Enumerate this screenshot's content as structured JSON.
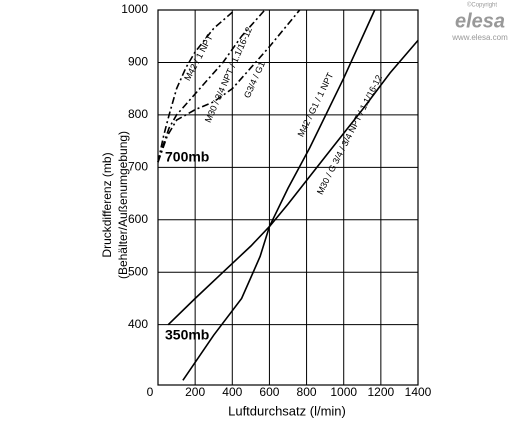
{
  "chart_data": {
    "type": "line",
    "y_label_lines": [
      "Druckdifferenz (mb)",
      "(Behälter/Außenumgebung)"
    ],
    "x_label": "Luftdurchsatz (l/min)",
    "annotations": [
      "700mb",
      "350mb"
    ],
    "logo": {
      "copyright": "©Copyright",
      "brand": "elesa",
      "url": "www.elesa.com"
    },
    "xlim": [
      0,
      1400
    ],
    "xticks": [
      0,
      200,
      400,
      600,
      800,
      1000,
      1200,
      1400
    ],
    "ylim": [
      285,
      1000
    ],
    "yticks": [
      400,
      500,
      600,
      700,
      800,
      900,
      1000
    ],
    "grid": true,
    "series": [
      {
        "name": "M42 / 1 NPT",
        "color": "#000000",
        "style": "dashdot",
        "x": [
          0,
          30,
          60,
          100,
          150,
          200,
          300,
          414
        ],
        "values": [
          710,
          760,
          800,
          850,
          890,
          920,
          965,
          1000
        ]
      },
      {
        "name": "M30 / 3/4 NPT / 1.1/16-12",
        "color": "#000000",
        "style": "dashdot",
        "x": [
          0,
          30,
          60,
          100,
          150,
          250,
          350,
          450,
          575
        ],
        "values": [
          710,
          745,
          775,
          800,
          820,
          860,
          900,
          950,
          1000
        ]
      },
      {
        "name": "G3/4 / G1",
        "color": "#000000",
        "style": "dashdot",
        "x": [
          0,
          50,
          100,
          150,
          200,
          300,
          400,
          500,
          600,
          763
        ],
        "values": [
          710,
          760,
          790,
          800,
          810,
          825,
          850,
          890,
          930,
          1000
        ]
      },
      {
        "name": "M42 / G1 / 1 NPT",
        "color": "#000000",
        "style": "solid",
        "x": [
          55,
          200,
          350,
          500,
          600,
          700,
          817,
          1000,
          1167
        ],
        "values": [
          400,
          450,
          500,
          550,
          587,
          660,
          737,
          870,
          1000
        ]
      },
      {
        "name": "M30 / G 3/4 / 3/4 NPT / 1.1/16-12",
        "color": "#000000",
        "style": "solid",
        "x": [
          134,
          300,
          450,
          550,
          600,
          700,
          900,
          1100,
          1250,
          1400
        ],
        "values": [
          294,
          380,
          450,
          530,
          587,
          630,
          720,
          810,
          880,
          942
        ]
      }
    ]
  }
}
